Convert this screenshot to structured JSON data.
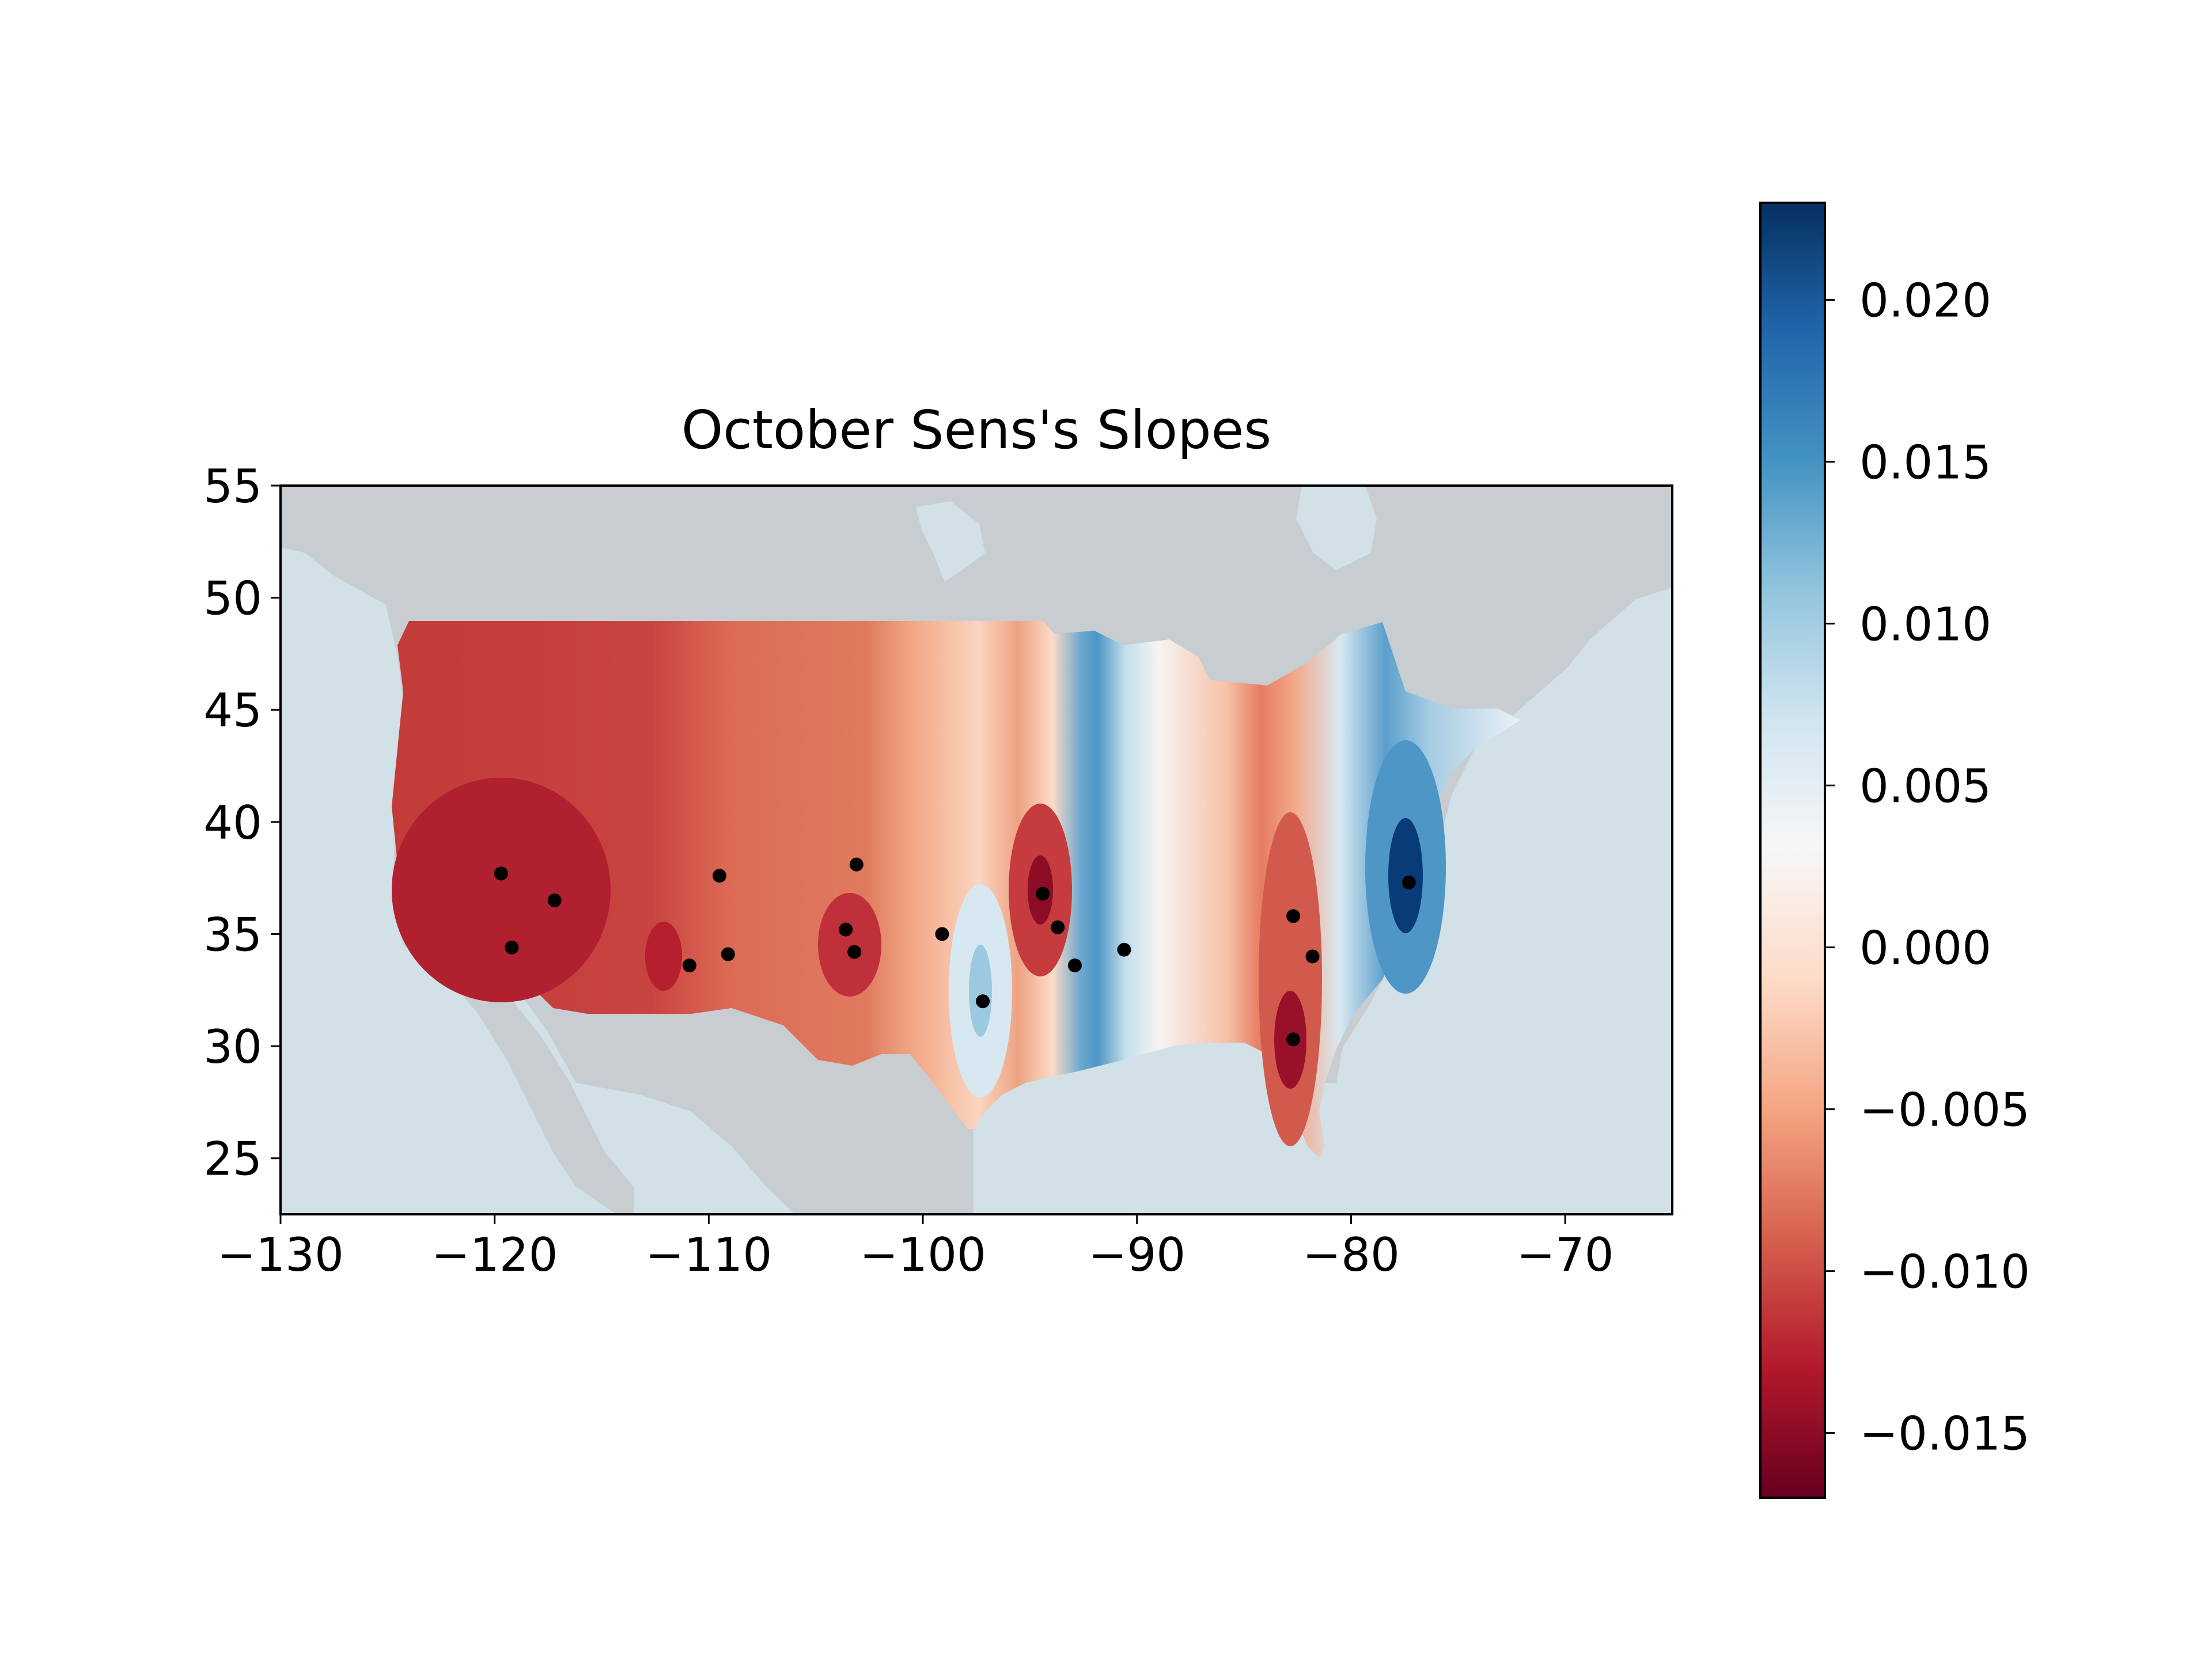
{
  "chart_data": {
    "type": "heatmap",
    "title": "October Sens's Slopes",
    "xlim": [
      -130,
      -65
    ],
    "ylim": [
      22.5,
      55
    ],
    "xticks": [
      -130,
      -120,
      -110,
      -100,
      -90,
      -80,
      -70
    ],
    "yticks": [
      25,
      30,
      35,
      40,
      45,
      50,
      55
    ],
    "xtick_labels": [
      "−130",
      "−120",
      "−110",
      "−100",
      "−90",
      "−80",
      "−70"
    ],
    "ytick_labels": [
      "25",
      "30",
      "35",
      "40",
      "45",
      "50",
      "55"
    ],
    "colormap": "RdBu",
    "colorbar": {
      "range": [
        -0.017,
        0.023
      ],
      "ticks": [
        -0.015,
        -0.01,
        -0.005,
        0.0,
        0.005,
        0.01,
        0.015,
        0.02
      ],
      "tick_labels": [
        "−0.015",
        "−0.010",
        "−0.005",
        "0.000",
        "0.005",
        "0.010",
        "0.015",
        "0.020"
      ]
    },
    "stations": [
      {
        "lon": -119.7,
        "lat": 37.7,
        "value": -0.015
      },
      {
        "lon": -117.2,
        "lat": 36.5,
        "value": -0.017
      },
      {
        "lon": -119.2,
        "lat": 34.4,
        "value": -0.015
      },
      {
        "lon": -109.5,
        "lat": 37.6,
        "value": -0.012
      },
      {
        "lon": -110.9,
        "lat": 33.6,
        "value": -0.015
      },
      {
        "lon": -109.1,
        "lat": 34.1,
        "value": -0.012
      },
      {
        "lon": -103.1,
        "lat": 38.1,
        "value": -0.012
      },
      {
        "lon": -103.6,
        "lat": 35.2,
        "value": -0.013
      },
      {
        "lon": -103.2,
        "lat": 34.2,
        "value": -0.014
      },
      {
        "lon": -99.1,
        "lat": 35.0,
        "value": -0.007
      },
      {
        "lon": -97.2,
        "lat": 32.0,
        "value": 0.009
      },
      {
        "lon": -94.4,
        "lat": 36.8,
        "value": -0.016
      },
      {
        "lon": -93.7,
        "lat": 35.3,
        "value": -0.009
      },
      {
        "lon": -92.9,
        "lat": 33.6,
        "value": -0.008
      },
      {
        "lon": -90.6,
        "lat": 34.3,
        "value": 0.011
      },
      {
        "lon": -82.7,
        "lat": 35.8,
        "value": -0.014
      },
      {
        "lon": -81.8,
        "lat": 34.0,
        "value": -0.011
      },
      {
        "lon": -82.7,
        "lat": 30.3,
        "value": -0.017
      },
      {
        "lon": -77.3,
        "lat": 37.3,
        "value": 0.023
      }
    ],
    "legend": "none"
  }
}
